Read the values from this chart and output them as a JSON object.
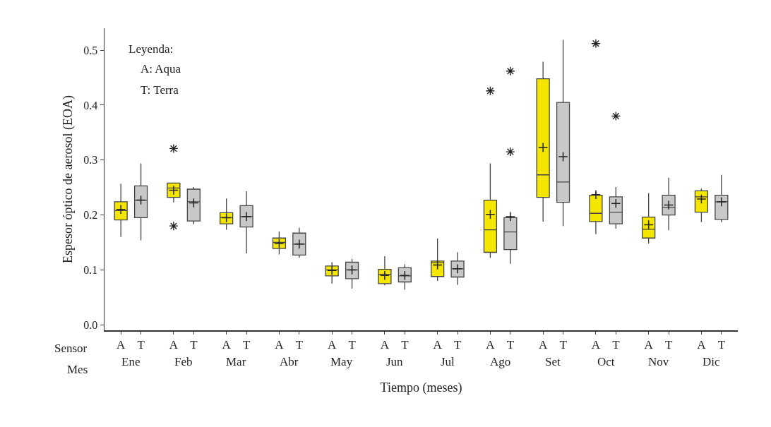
{
  "chart_data": {
    "type": "box",
    "xlabel": "Tiempo (meses)",
    "ylabel": "Espesor óptico de aerosol (EOA)",
    "annotations": [
      "Leyenda:",
      "A: Aqua",
      "T: Terra",
      "Sensor",
      "Mes"
    ],
    "categories": [
      "Ene",
      "Feb",
      "Mar",
      "Abr",
      "May",
      "Jun",
      "Jul",
      "Ago",
      "Set",
      "Oct",
      "Nov",
      "Dic"
    ],
    "ylim": [
      -0.01,
      0.54
    ],
    "yticks": [
      {
        "value": 0,
        "label": "0.0"
      },
      0.1,
      0.2,
      0.3,
      0.4,
      0.5
    ],
    "grid": false,
    "series": [
      {
        "name": "A",
        "color": "#f5e600",
        "boxes": [
          {
            "low": 0.16,
            "q1": 0.191,
            "median": 0.208,
            "q3": 0.224,
            "high": 0.257,
            "mean": 0.21
          },
          {
            "low": 0.223,
            "q1": 0.232,
            "median": 0.249,
            "q3": 0.258,
            "high": 0.258,
            "mean": 0.245,
            "outliers": [
              0.321,
              0.18
            ]
          },
          {
            "low": 0.173,
            "q1": 0.184,
            "median": 0.195,
            "q3": 0.204,
            "high": 0.23,
            "mean": 0.195
          },
          {
            "low": 0.128,
            "q1": 0.139,
            "median": 0.15,
            "q3": 0.158,
            "high": 0.17,
            "mean": 0.148
          },
          {
            "low": 0.075,
            "q1": 0.089,
            "median": 0.1,
            "q3": 0.107,
            "high": 0.114,
            "mean": 0.099
          },
          {
            "low": 0.072,
            "q1": 0.075,
            "median": 0.092,
            "q3": 0.101,
            "high": 0.125,
            "mean": 0.09
          },
          {
            "low": 0.08,
            "q1": 0.088,
            "median": 0.113,
            "q3": 0.116,
            "high": 0.157,
            "mean": 0.109
          },
          {
            "low": 0.122,
            "q1": 0.132,
            "median": 0.173,
            "q3": 0.227,
            "high": 0.294,
            "mean": 0.201,
            "outliers": [
              0.426
            ]
          },
          {
            "low": 0.188,
            "q1": 0.232,
            "median": 0.273,
            "q3": 0.448,
            "high": 0.479,
            "mean": 0.323
          },
          {
            "low": 0.165,
            "q1": 0.188,
            "median": 0.203,
            "q3": 0.236,
            "high": 0.242,
            "mean": 0.237,
            "outliers": [
              0.512
            ]
          },
          {
            "low": 0.148,
            "q1": 0.158,
            "median": 0.174,
            "q3": 0.196,
            "high": 0.24,
            "mean": 0.182
          },
          {
            "low": 0.187,
            "q1": 0.205,
            "median": 0.233,
            "q3": 0.244,
            "high": 0.248,
            "mean": 0.229
          }
        ]
      },
      {
        "name": "T",
        "color": "#c8c8c8",
        "boxes": [
          {
            "low": 0.154,
            "q1": 0.195,
            "median": 0.227,
            "q3": 0.253,
            "high": 0.294,
            "mean": 0.227
          },
          {
            "low": 0.183,
            "q1": 0.189,
            "median": 0.224,
            "q3": 0.247,
            "high": 0.251,
            "mean": 0.222
          },
          {
            "low": 0.13,
            "q1": 0.178,
            "median": 0.197,
            "q3": 0.217,
            "high": 0.243,
            "mean": 0.197
          },
          {
            "low": 0.122,
            "q1": 0.127,
            "median": 0.147,
            "q3": 0.167,
            "high": 0.177,
            "mean": 0.147
          },
          {
            "low": 0.066,
            "q1": 0.084,
            "median": 0.1,
            "q3": 0.114,
            "high": 0.12,
            "mean": 0.1
          },
          {
            "low": 0.064,
            "q1": 0.078,
            "median": 0.089,
            "q3": 0.104,
            "high": 0.11,
            "mean": 0.09
          },
          {
            "low": 0.073,
            "q1": 0.087,
            "median": 0.102,
            "q3": 0.116,
            "high": 0.132,
            "mean": 0.102
          },
          {
            "low": 0.111,
            "q1": 0.137,
            "median": 0.169,
            "q3": 0.195,
            "high": 0.199,
            "mean": 0.197,
            "outliers": [
              0.462,
              0.315
            ]
          },
          {
            "low": 0.18,
            "q1": 0.223,
            "median": 0.26,
            "q3": 0.405,
            "high": 0.519,
            "mean": 0.306
          },
          {
            "low": 0.175,
            "q1": 0.184,
            "median": 0.205,
            "q3": 0.233,
            "high": 0.251,
            "mean": 0.221,
            "outliers": [
              0.38
            ]
          },
          {
            "low": 0.172,
            "q1": 0.2,
            "median": 0.214,
            "q3": 0.236,
            "high": 0.268,
            "mean": 0.218
          },
          {
            "low": 0.187,
            "q1": 0.192,
            "median": 0.224,
            "q3": 0.236,
            "high": 0.273,
            "mean": 0.224
          }
        ]
      }
    ]
  }
}
